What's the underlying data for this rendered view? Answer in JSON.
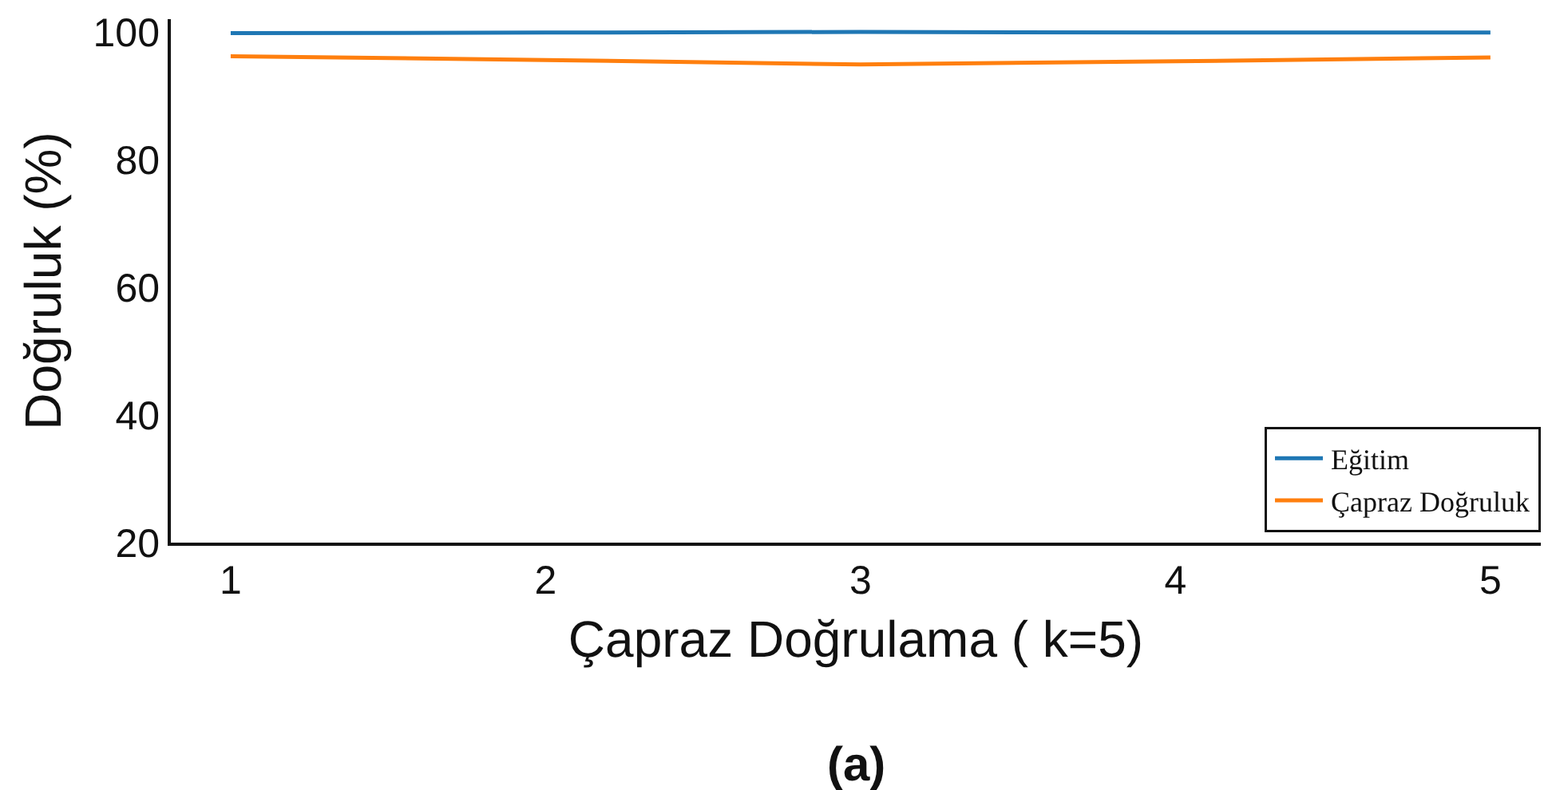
{
  "chart_data": {
    "type": "line",
    "xlabel": "Çapraz Doğrulama ( k=5)",
    "ylabel": "Doğruluk (%)",
    "x": [
      1,
      2,
      3,
      4,
      5
    ],
    "series": [
      {
        "name": "Eğitim",
        "color": "#1f77b4",
        "values": [
          99.8,
          99.9,
          100,
          99.9,
          99.9
        ]
      },
      {
        "name": "Çapraz Doğruluk",
        "color": "#ff7f0e",
        "values": [
          96.2,
          95.6,
          94.9,
          95.4,
          96
        ]
      }
    ],
    "xlim": [
      0.81,
      5.16
    ],
    "xticks": [
      1,
      2,
      3,
      4,
      5
    ],
    "ylim": [
      20,
      102
    ],
    "yticks": [
      20,
      40,
      60,
      80,
      100
    ],
    "grid": false,
    "legend": "bottom right",
    "marker": "none",
    "line_style": "solid",
    "annotations": [
      "(a)"
    ]
  }
}
